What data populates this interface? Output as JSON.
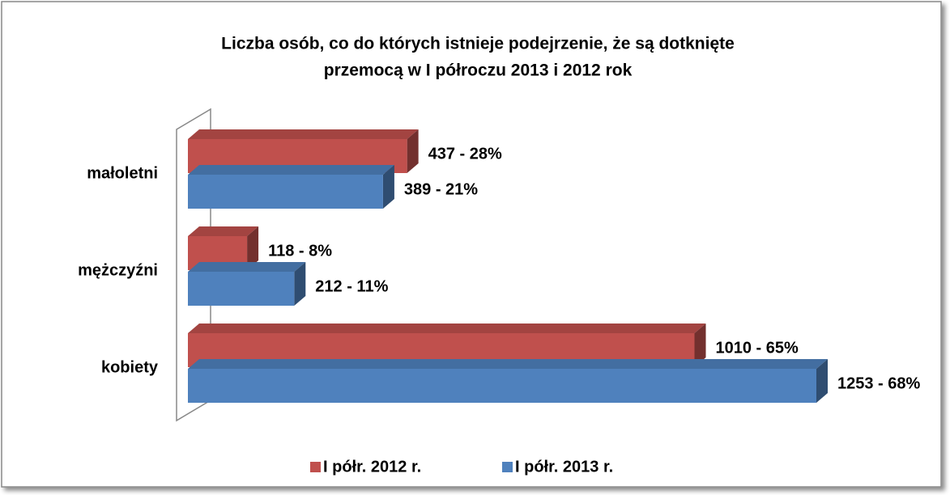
{
  "chart_data": {
    "type": "bar3d-horizontal",
    "title": "Liczba osób, co do których istnieje podejrzenie, że są dotknięte",
    "subtitle": "przemocą w I półroczu 2013 i 2012 rok",
    "categories": [
      "małoletni",
      "mężczyźni",
      "kobiety"
    ],
    "series": [
      {
        "name": "I półr. 2012 r.",
        "color": "#c0504d",
        "values": [
          437,
          118,
          1010
        ],
        "value_labels": [
          "437 - 28%",
          "118 - 8%",
          "1010 - 65%"
        ]
      },
      {
        "name": "I półr. 2013 r.",
        "color": "#4f81bd",
        "values": [
          389,
          212,
          1253
        ],
        "value_labels": [
          "389 - 21%",
          "212 - 11%",
          "1253 - 68%"
        ]
      }
    ],
    "legend": "bottom"
  }
}
